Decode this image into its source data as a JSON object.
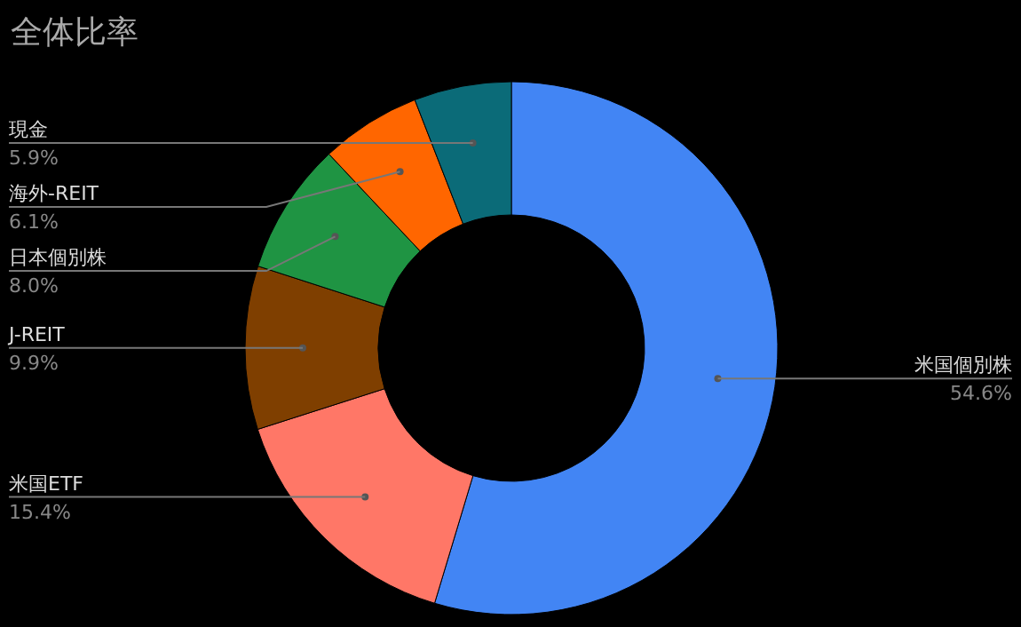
{
  "chart_data": {
    "type": "donut",
    "title": "全体比率",
    "categories": [
      "米国個別株",
      "米国ETF",
      "J-REIT",
      "日本個別株",
      "海外-REIT",
      "現金"
    ],
    "values": [
      54.6,
      15.4,
      9.9,
      8.0,
      6.1,
      5.9
    ],
    "colors": [
      "#4285f4",
      "#ff7767",
      "#7f3f00",
      "#1f9443",
      "#ff6600",
      "#0b6b78"
    ],
    "value_labels": [
      "54.6%",
      "15.4%",
      "9.9%",
      "8.0%",
      "6.1%",
      "5.9%"
    ]
  }
}
